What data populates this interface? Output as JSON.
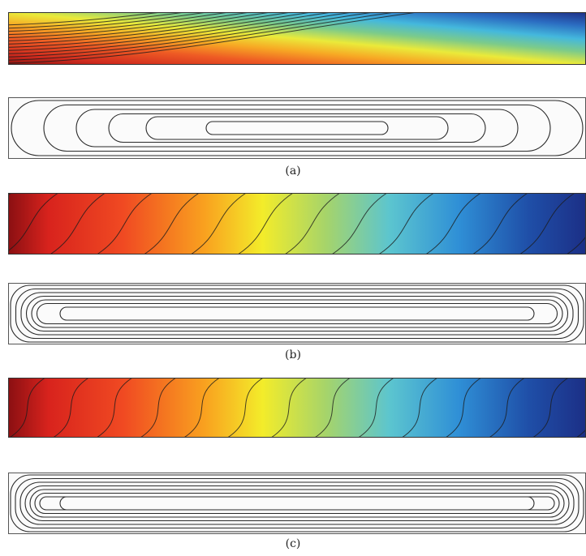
{
  "figure": {
    "panels": [
      {
        "label": "(a)",
        "temperature": {
          "isotherm_style": "diagonal",
          "isotherm_count": 13,
          "colormap": "jet",
          "hot_side": "left",
          "cold_side": "right"
        },
        "streamlines": {
          "style": "elliptic",
          "loop_count": 6
        }
      },
      {
        "label": "(b)",
        "temperature": {
          "isotherm_style": "s-shaped",
          "isotherm_count": 14,
          "colormap": "jet",
          "hot_side": "left",
          "cold_side": "right"
        },
        "streamlines": {
          "style": "boundary-layer",
          "loop_count": 7
        }
      },
      {
        "label": "(c)",
        "temperature": {
          "isotherm_style": "strong-s-shaped",
          "isotherm_count": 15,
          "colormap": "jet",
          "hot_side": "left",
          "cold_side": "right"
        },
        "streamlines": {
          "style": "thin-boundary-layer",
          "loop_count": 8
        }
      }
    ]
  }
}
